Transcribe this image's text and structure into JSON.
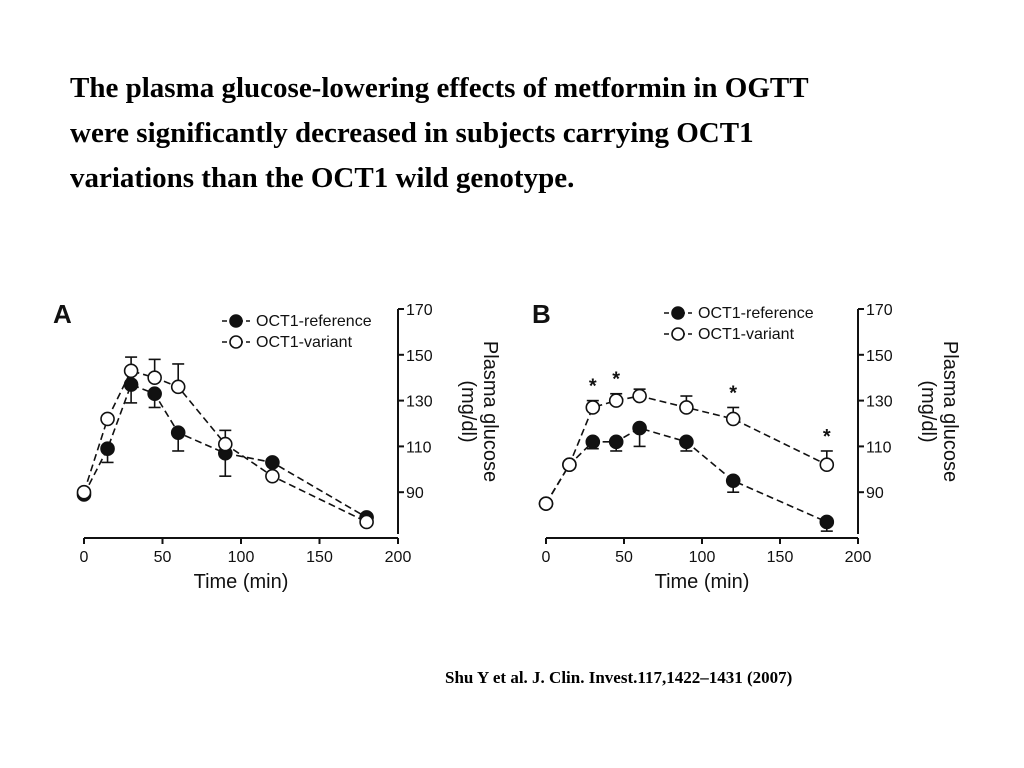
{
  "slide": {
    "title_lines": [
      "The plasma glucose-lowering effects of metformin in OGTT",
      "were significantly decreased in subjects carrying OCT1",
      "variations than the OCT1 wild genotype."
    ],
    "citation": "Shu Y et al. J. Clin. Invest.117,1422–1431 (2007)"
  },
  "chart_data": [
    {
      "type": "line",
      "panel_label": "A",
      "xlabel": "Time (min)",
      "ylabel": "Plasma glucose (mg/dl)",
      "x_ticks": [
        0,
        50,
        100,
        150,
        200
      ],
      "y_ticks": [
        90,
        110,
        130,
        150,
        170
      ],
      "xlim": [
        0,
        200
      ],
      "ylim": [
        70,
        170
      ],
      "y_axis_side": "right",
      "legend_position": "top-right",
      "grid": false,
      "series": [
        {
          "name": "OCT1-reference",
          "marker": "filled-circle",
          "color": "#111111",
          "x": [
            0,
            15,
            30,
            45,
            60,
            90,
            120,
            180
          ],
          "y": [
            89,
            109,
            137,
            133,
            116,
            107,
            103,
            79
          ],
          "error": [
            0,
            6,
            8,
            6,
            8,
            10,
            0,
            0
          ],
          "asterisk": []
        },
        {
          "name": "OCT1-variant",
          "marker": "open-circle",
          "color": "#111111",
          "x": [
            0,
            15,
            30,
            45,
            60,
            90,
            120,
            180
          ],
          "y": [
            90,
            122,
            143,
            140,
            136,
            111,
            97,
            77
          ],
          "error": [
            0,
            0,
            6,
            8,
            10,
            6,
            0,
            0
          ],
          "asterisk": []
        }
      ]
    },
    {
      "type": "line",
      "panel_label": "B",
      "xlabel": "Time (min)",
      "ylabel": "Plasma glucose (mg/dl)",
      "x_ticks": [
        0,
        50,
        100,
        150,
        200
      ],
      "y_ticks": [
        90,
        110,
        130,
        150,
        170
      ],
      "xlim": [
        0,
        200
      ],
      "ylim": [
        70,
        170
      ],
      "y_axis_side": "right",
      "legend_position": "top-right",
      "grid": false,
      "series": [
        {
          "name": "OCT1-reference",
          "marker": "filled-circle",
          "color": "#111111",
          "x": [
            0,
            15,
            30,
            45,
            60,
            90,
            120,
            180
          ],
          "y": [
            85,
            102,
            112,
            112,
            118,
            112,
            95,
            77
          ],
          "error": [
            0,
            0,
            3,
            4,
            8,
            4,
            5,
            4
          ],
          "asterisk": []
        },
        {
          "name": "OCT1-variant",
          "marker": "open-circle",
          "color": "#111111",
          "x": [
            0,
            15,
            30,
            45,
            60,
            90,
            120,
            180
          ],
          "y": [
            85,
            102,
            127,
            130,
            132,
            127,
            122,
            102
          ],
          "error": [
            0,
            0,
            3,
            3,
            3,
            5,
            5,
            6
          ],
          "asterisk": [
            30,
            45,
            120,
            180
          ]
        }
      ]
    }
  ],
  "asterisk_symbol": "*"
}
